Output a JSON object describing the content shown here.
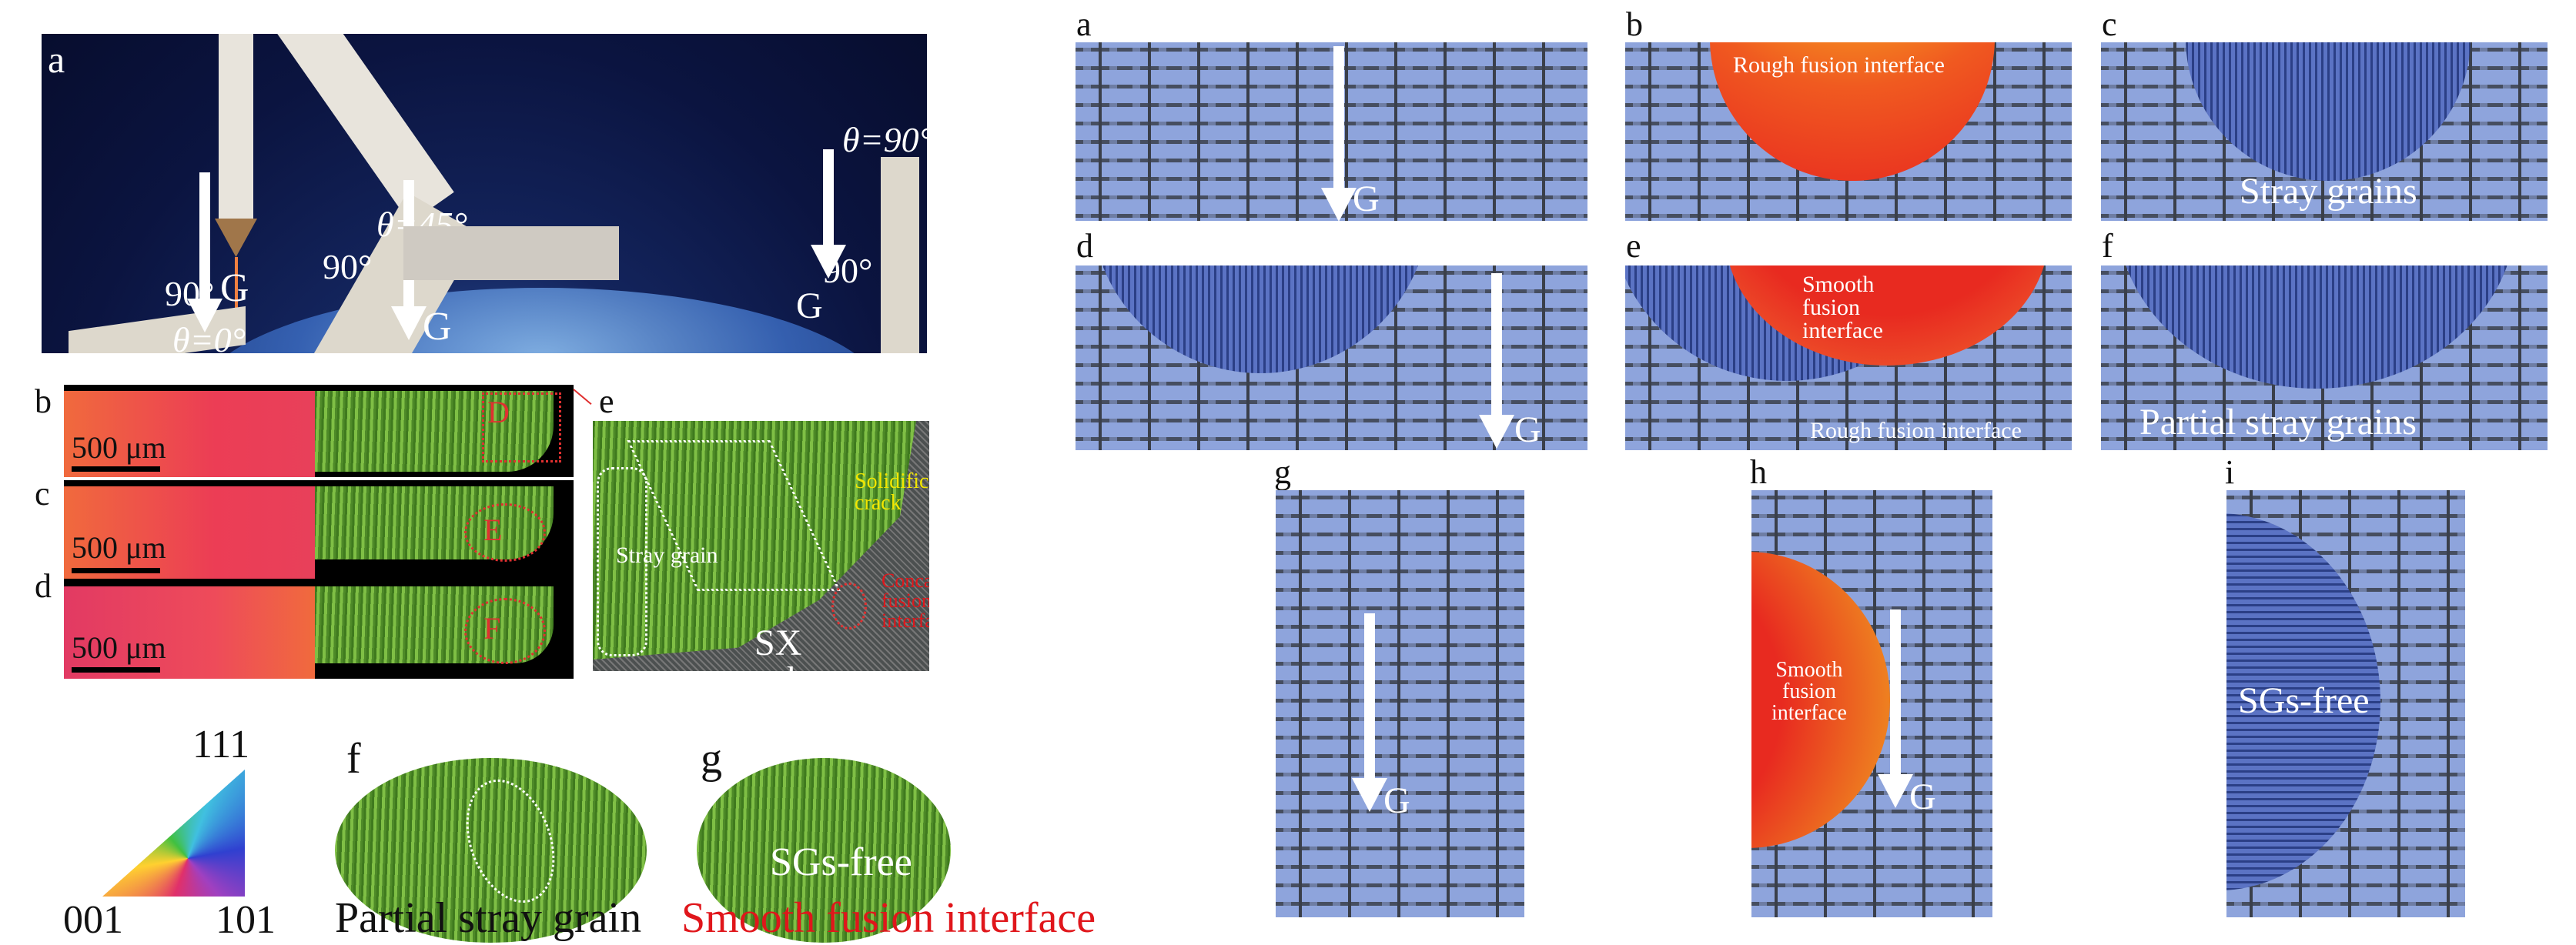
{
  "left": {
    "panel_a": {
      "label": "a",
      "g1": "G",
      "g2": "G",
      "g3": "G",
      "angle1": "90°",
      "theta1": "θ=0°",
      "angle2": "90°",
      "theta2": "θ=45°",
      "angle3": "90°",
      "theta3": "θ=90°"
    },
    "panel_b": {
      "label": "b",
      "scale": "500 μm",
      "region": "D"
    },
    "panel_c": {
      "label": "c",
      "scale": "500 μm",
      "region": "E"
    },
    "panel_d": {
      "label": "d",
      "scale": "500 μm",
      "region": "F"
    },
    "panel_e": {
      "label": "e",
      "crack": "Solidification crack",
      "stray": "Stray grain",
      "concave": "Concave fusion interface",
      "substrate": "SX substrate"
    },
    "ipf_legend": {
      "top": "111",
      "left": "001",
      "right": "101"
    },
    "panel_f": {
      "label": "f",
      "caption": "Partial stray grain"
    },
    "panel_g": {
      "label": "g",
      "inner": "SGs-free",
      "caption": "Smooth fusion interface",
      "caption_color": "#e0161b"
    }
  },
  "right": {
    "a": {
      "label": "a",
      "g": "G"
    },
    "b": {
      "label": "b",
      "text": "Rough fusion interface"
    },
    "c": {
      "label": "c",
      "text": "Stray grains"
    },
    "d": {
      "label": "d",
      "g": "G"
    },
    "e": {
      "label": "e",
      "smooth": "Smooth fusion interface",
      "rough": "Rough fusion interface"
    },
    "f": {
      "label": "f",
      "text": "Partial stray grains"
    },
    "g": {
      "label": "g",
      "g": "G"
    },
    "h": {
      "label": "h",
      "text": "Smooth fusion interface",
      "g": "G"
    },
    "i": {
      "label": "i",
      "text": "SGs-free"
    }
  },
  "colors": {
    "dendrite_bg": "#8ea4dc",
    "melt_pool_hot": "#f05a20",
    "stray_grain_blue": "#3b55a8",
    "crack_label": "#f2e600",
    "red_label": "#e0161b"
  }
}
